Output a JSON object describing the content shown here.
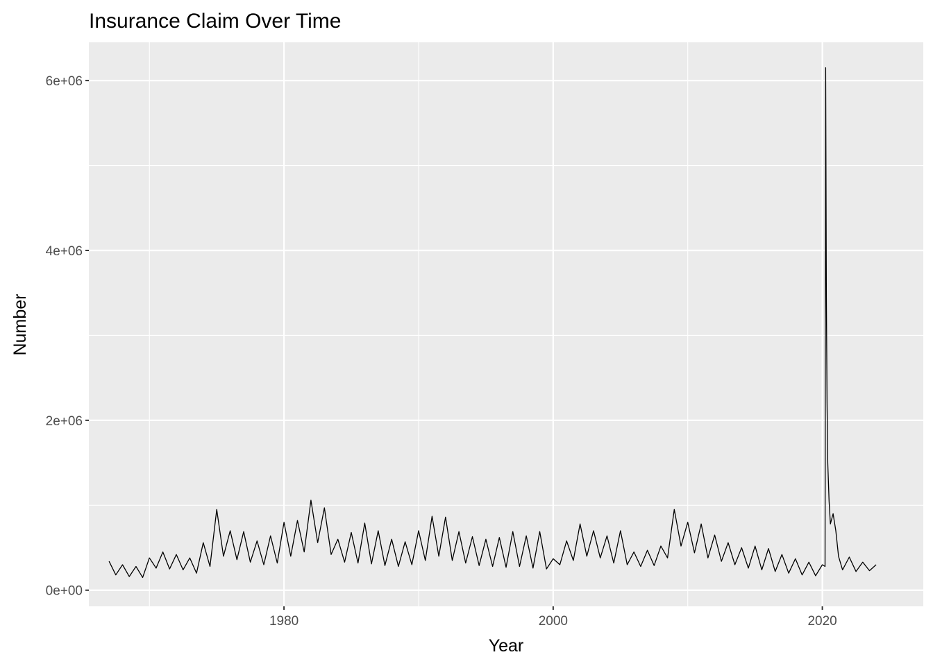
{
  "chart_data": {
    "type": "line",
    "title": "Insurance Claim Over Time",
    "xlabel": "Year",
    "ylabel": "Number",
    "xlim": [
      1965.5,
      2027.5
    ],
    "ylim": [
      -190000,
      6450000
    ],
    "x_ticks": [
      1980,
      2000,
      2020
    ],
    "x_tick_labels": [
      "1980",
      "2000",
      "2020"
    ],
    "y_ticks": [
      0,
      2000000,
      4000000,
      6000000
    ],
    "y_tick_labels": [
      "0e+00",
      "2e+06",
      "4e+06",
      "6e+06"
    ],
    "grid": true,
    "legend": "none",
    "series": [
      {
        "color": "#000000",
        "x": [
          1967.0,
          1967.5,
          1968.0,
          1968.5,
          1969.0,
          1969.5,
          1970.0,
          1970.5,
          1971.0,
          1971.5,
          1972.0,
          1972.5,
          1973.0,
          1973.5,
          1974.0,
          1974.5,
          1975.0,
          1975.5,
          1976.0,
          1976.5,
          1977.0,
          1977.5,
          1978.0,
          1978.5,
          1979.0,
          1979.5,
          1980.0,
          1980.5,
          1981.0,
          1981.5,
          1982.0,
          1982.5,
          1983.0,
          1983.5,
          1984.0,
          1984.5,
          1985.0,
          1985.5,
          1986.0,
          1986.5,
          1987.0,
          1987.5,
          1988.0,
          1988.5,
          1989.0,
          1989.5,
          1990.0,
          1990.5,
          1991.0,
          1991.5,
          1992.0,
          1992.5,
          1993.0,
          1993.5,
          1994.0,
          1994.5,
          1995.0,
          1995.5,
          1996.0,
          1996.5,
          1997.0,
          1997.5,
          1998.0,
          1998.5,
          1999.0,
          1999.5,
          2000.0,
          2000.5,
          2001.0,
          2001.5,
          2002.0,
          2002.5,
          2003.0,
          2003.5,
          2004.0,
          2004.5,
          2005.0,
          2005.5,
          2006.0,
          2006.5,
          2007.0,
          2007.5,
          2008.0,
          2008.5,
          2009.0,
          2009.5,
          2010.0,
          2010.5,
          2011.0,
          2011.5,
          2012.0,
          2012.5,
          2013.0,
          2013.5,
          2014.0,
          2014.5,
          2015.0,
          2015.5,
          2016.0,
          2016.5,
          2017.0,
          2017.5,
          2018.0,
          2018.5,
          2019.0,
          2019.5,
          2020.0,
          2020.2,
          2020.25,
          2020.3,
          2020.35,
          2020.4,
          2020.5,
          2020.6,
          2020.8,
          2021.0,
          2021.2,
          2021.5,
          2022.0,
          2022.5,
          2023.0,
          2023.5,
          2024.0
        ],
        "y": [
          340000,
          180000,
          300000,
          160000,
          280000,
          150000,
          380000,
          260000,
          450000,
          250000,
          420000,
          240000,
          380000,
          200000,
          560000,
          280000,
          950000,
          400000,
          700000,
          360000,
          690000,
          330000,
          580000,
          300000,
          640000,
          320000,
          800000,
          400000,
          820000,
          450000,
          1060000,
          560000,
          970000,
          420000,
          600000,
          330000,
          680000,
          320000,
          790000,
          310000,
          700000,
          290000,
          600000,
          280000,
          570000,
          300000,
          700000,
          350000,
          870000,
          400000,
          860000,
          350000,
          690000,
          320000,
          630000,
          290000,
          600000,
          280000,
          620000,
          270000,
          690000,
          280000,
          640000,
          260000,
          690000,
          250000,
          370000,
          300000,
          580000,
          350000,
          780000,
          400000,
          700000,
          380000,
          640000,
          320000,
          700000,
          300000,
          450000,
          280000,
          470000,
          290000,
          520000,
          380000,
          950000,
          520000,
          800000,
          440000,
          780000,
          380000,
          650000,
          340000,
          560000,
          300000,
          500000,
          260000,
          520000,
          240000,
          490000,
          220000,
          420000,
          200000,
          370000,
          180000,
          330000,
          170000,
          300000,
          280000,
          6150000,
          3450000,
          2200000,
          1500000,
          1050000,
          780000,
          900000,
          700000,
          400000,
          240000,
          390000,
          220000,
          330000,
          230000,
          300000
        ]
      }
    ]
  }
}
